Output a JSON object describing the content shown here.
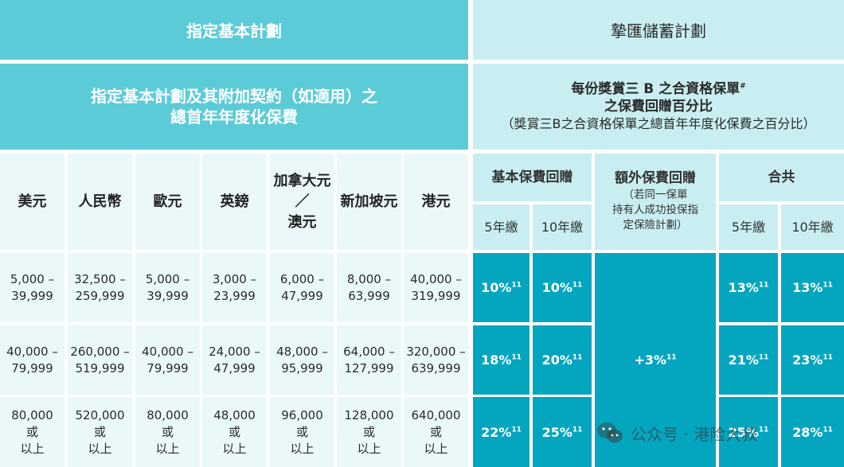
{
  "left_title": "指定基本計劃",
  "right_title": "摯匯儲蓄計劃",
  "left_subtitle": [
    "指定基本計劃及其附加契約（如適用）之",
    "總首年年度化保費"
  ],
  "right_subtitle": {
    "line1": "每份獎賞三 B 之合資格保單",
    "line1_sup": "#",
    "line2": "之保費回贈百分比",
    "line3": "（獎賞三B之合資格保單之總首年年度化保費之百分比）"
  },
  "currencies": [
    "美元",
    "人民幣",
    "歐元",
    "英鎊",
    "加拿大元\n／\n澳元",
    "新加坡元",
    "港元"
  ],
  "groups": {
    "basic": "基本保費回贈",
    "extra": [
      "額外保費回贈",
      "（若同一保單",
      "持有人成功投保指",
      "定保險計劃）"
    ],
    "total": "合共"
  },
  "terms": [
    "5年繳",
    "10年繳"
  ],
  "bands": [
    [
      "5,000 –\n39,999",
      "32,500 –\n259,999",
      "5,000 –\n39,999",
      "3,000 –\n23,999",
      "6,000 –\n47,999",
      "8,000 –\n63,999",
      "40,000 –\n319,999"
    ],
    [
      "40,000 –\n79,999",
      "260,000 –\n519,999",
      "40,000 –\n79,999",
      "24,000 –\n47,999",
      "48,000 –\n95,999",
      "64,000 –\n127,999",
      "320,000 –\n639,999"
    ],
    [
      "80,000\n或\n以上",
      "520,000\n或\n以上",
      "80,000\n或\n以上",
      "48,000\n或\n以上",
      "96,000\n或\n以上",
      "128,000\n或\n以上",
      "640,000\n或\n以上"
    ]
  ],
  "rebates": [
    {
      "basic5": "10%",
      "basic10": "10%",
      "total5": "13%",
      "total10": "13%"
    },
    {
      "basic5": "18%",
      "basic10": "20%",
      "total5": "21%",
      "total10": "23%"
    },
    {
      "basic5": "22%",
      "basic10": "25%",
      "total5": "25%",
      "total10": "28%"
    }
  ],
  "extra_rebate": "+3%",
  "footnote_ref": "11",
  "watermark": "公众号 · 港险大叔",
  "colors": {
    "title_bg": "#5ccbd8",
    "light_bg": "#c9eef1",
    "pale_bg": "#eaf8fa",
    "data_bg": "#04a6bf"
  }
}
